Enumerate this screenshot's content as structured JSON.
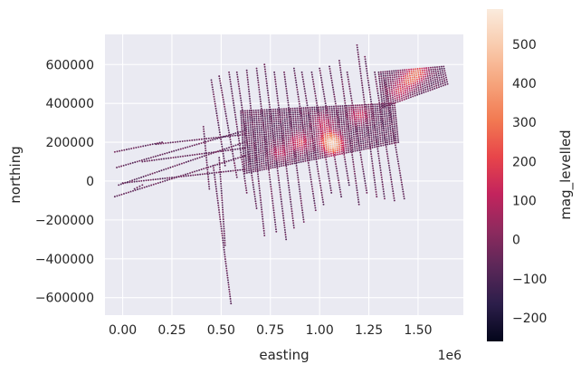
{
  "chart_data": {
    "type": "scatter",
    "title": "",
    "xlabel": "easting",
    "ylabel": "northing",
    "x_offset_label": "1e6",
    "xlim": [
      -0.09,
      1.73
    ],
    "ylim": [
      -690000,
      755000
    ],
    "xticks": [
      0.0,
      0.25,
      0.5,
      0.75,
      1.0,
      1.25,
      1.5
    ],
    "xtick_labels": [
      "0.00",
      "0.25",
      "0.50",
      "0.75",
      "1.00",
      "1.25",
      "1.50"
    ],
    "yticks": [
      600000,
      400000,
      200000,
      0,
      -200000,
      -400000,
      -600000
    ],
    "ytick_labels": [
      "600000",
      "400000",
      "200000",
      "0",
      "−200000",
      "−400000",
      "−600000"
    ],
    "grid": true,
    "colorbar": {
      "label": "mag_levelled",
      "min": -260,
      "max": 590,
      "ticks": [
        500,
        400,
        300,
        200,
        100,
        0,
        -100,
        -200
      ],
      "tick_labels": [
        "500",
        "400",
        "300",
        "200",
        "100",
        "0",
        "−100",
        "−200"
      ],
      "colormap": [
        "#03051a",
        "#2b1e4a",
        "#5a2758",
        "#8e2a5e",
        "#c3245d",
        "#e8454a",
        "#f27a52",
        "#f6a47c",
        "#f9cbad",
        "#faebdd"
      ]
    },
    "flight_lines_ns": [
      {
        "x0": 0.41,
        "y0": 280000,
        "x1": 0.44,
        "y1": -40000
      },
      {
        "x0": 0.45,
        "y0": 520000,
        "x1": 0.52,
        "y1": 80000
      },
      {
        "x0": 0.49,
        "y0": 540000,
        "x1": 0.58,
        "y1": 20000
      },
      {
        "x0": 0.54,
        "y0": 560000,
        "x1": 0.63,
        "y1": -60000
      },
      {
        "x0": 0.58,
        "y0": 560000,
        "x1": 0.68,
        "y1": -140000
      },
      {
        "x0": 0.63,
        "y0": 570000,
        "x1": 0.72,
        "y1": -280000
      },
      {
        "x0": 0.68,
        "y0": 580000,
        "x1": 0.78,
        "y1": -260000
      },
      {
        "x0": 0.72,
        "y0": 600000,
        "x1": 0.83,
        "y1": -300000
      },
      {
        "x0": 0.77,
        "y0": 560000,
        "x1": 0.87,
        "y1": -240000
      },
      {
        "x0": 0.82,
        "y0": 560000,
        "x1": 0.92,
        "y1": -210000
      },
      {
        "x0": 0.87,
        "y0": 580000,
        "x1": 0.98,
        "y1": -150000
      },
      {
        "x0": 0.91,
        "y0": 560000,
        "x1": 1.02,
        "y1": -120000
      },
      {
        "x0": 0.96,
        "y0": 560000,
        "x1": 1.06,
        "y1": -60000
      },
      {
        "x0": 1.0,
        "y0": 580000,
        "x1": 1.11,
        "y1": -80000
      },
      {
        "x0": 1.05,
        "y0": 590000,
        "x1": 1.15,
        "y1": -20000
      },
      {
        "x0": 1.1,
        "y0": 620000,
        "x1": 1.2,
        "y1": -120000
      },
      {
        "x0": 1.14,
        "y0": 560000,
        "x1": 1.24,
        "y1": -60000
      },
      {
        "x0": 1.19,
        "y0": 700000,
        "x1": 1.29,
        "y1": -80000
      },
      {
        "x0": 1.23,
        "y0": 640000,
        "x1": 1.33,
        "y1": -90000
      },
      {
        "x0": 1.28,
        "y0": 560000,
        "x1": 1.38,
        "y1": -100000
      },
      {
        "x0": 1.33,
        "y0": 520000,
        "x1": 1.43,
        "y1": -90000
      },
      {
        "x0": 0.46,
        "y0": 80000,
        "x1": 0.55,
        "y1": -630000
      },
      {
        "x0": 0.49,
        "y0": 120000,
        "x1": 0.52,
        "y1": -330000
      }
    ],
    "flight_lines_ew": [
      {
        "x0": -0.04,
        "y0": 150000,
        "x1": 0.2,
        "y1": 200000
      },
      {
        "x0": -0.03,
        "y0": 70000,
        "x1": 0.62,
        "y1": 260000
      },
      {
        "x0": -0.02,
        "y0": -20000,
        "x1": 0.62,
        "y1": 200000
      },
      {
        "x0": -0.04,
        "y0": -80000,
        "x1": 0.62,
        "y1": 130000
      },
      {
        "x0": 0.0,
        "y0": -10000,
        "x1": 0.62,
        "y1": 60000
      },
      {
        "x0": 0.06,
        "y0": -40000,
        "x1": 0.1,
        "y1": -20000
      },
      {
        "x0": 0.1,
        "y0": 100000,
        "x1": 0.62,
        "y1": 170000
      },
      {
        "x0": 0.17,
        "y0": 190000,
        "x1": 0.62,
        "y1": 240000
      }
    ],
    "survey_blocks": [
      {
        "x0": 0.6,
        "y0": 40000,
        "x1": 1.38,
        "y1": 400000,
        "skew": 80000
      },
      {
        "x0": 1.3,
        "y0": 380000,
        "x1": 1.63,
        "y1": 590000,
        "skew": 60000
      }
    ],
    "highlights": [
      {
        "x": 1.07,
        "y": 180000,
        "v": 420
      },
      {
        "x": 1.05,
        "y": 220000,
        "v": 320
      },
      {
        "x": 0.9,
        "y": 200000,
        "v": 250
      },
      {
        "x": 1.02,
        "y": 300000,
        "v": 180
      },
      {
        "x": 1.45,
        "y": 520000,
        "v": 260
      },
      {
        "x": 1.5,
        "y": 560000,
        "v": 300
      },
      {
        "x": 1.4,
        "y": 460000,
        "v": 200
      },
      {
        "x": 0.8,
        "y": 150000,
        "v": 160
      },
      {
        "x": 1.2,
        "y": 340000,
        "v": 200
      }
    ]
  }
}
